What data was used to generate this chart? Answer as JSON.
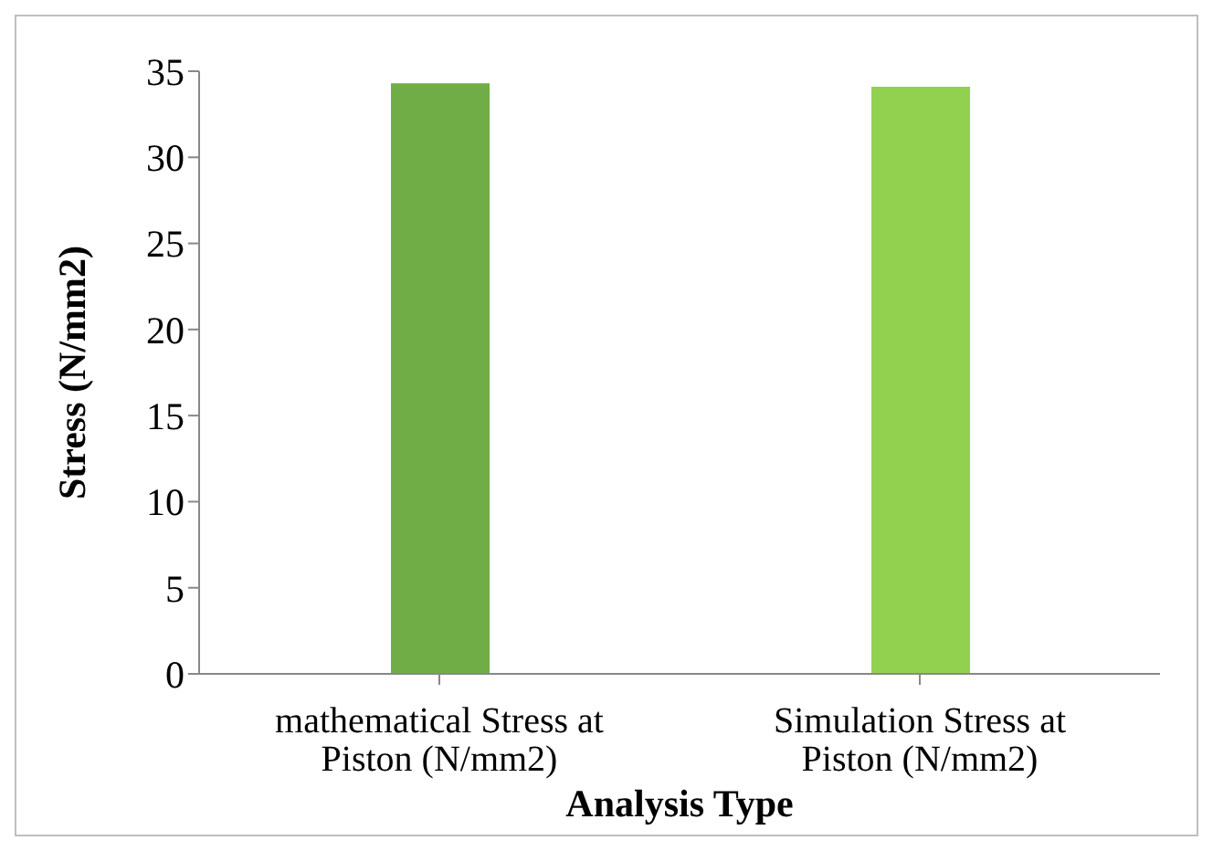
{
  "chart_data": {
    "type": "bar",
    "xlabel": "Analysis Type",
    "ylabel": "Stress (N/mm2)",
    "categories": [
      "mathematical Stress at Piston (N/mm2)",
      "Simulation Stress at Piston (N/mm2)"
    ],
    "values": [
      34.3,
      34.1
    ],
    "colors": [
      "#70ad47",
      "#92d050"
    ],
    "ylim": [
      0,
      35
    ],
    "yticks": [
      0,
      5,
      10,
      15,
      20,
      25,
      30,
      35
    ],
    "grid": false,
    "legend": false
  }
}
